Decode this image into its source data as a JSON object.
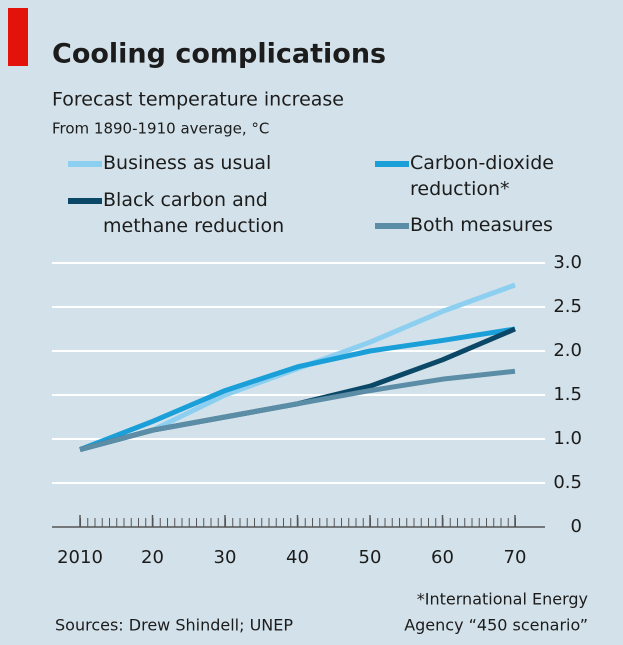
{
  "chart_data": {
    "type": "line",
    "title": "Cooling complications",
    "subtitle": "Forecast temperature increase",
    "unit_note": "From 1890-1910 average, °C",
    "x": [
      2010,
      2020,
      2030,
      2040,
      2050,
      2060,
      2070
    ],
    "series": [
      {
        "name": "Business as usual",
        "color": "#8ccff0",
        "values": [
          0.88,
          1.1,
          1.5,
          1.8,
          2.1,
          2.45,
          2.75
        ]
      },
      {
        "name": "Carbon-dioxide reduction*",
        "color": "#1a9fd9",
        "values": [
          0.88,
          1.2,
          1.55,
          1.82,
          2.0,
          2.12,
          2.25
        ]
      },
      {
        "name": "Black carbon and methane reduction",
        "color": "#0b4868",
        "values": [
          0.88,
          1.1,
          1.25,
          1.4,
          1.6,
          1.9,
          2.25
        ]
      },
      {
        "name": "Both measures",
        "color": "#5b8ea6",
        "values": [
          0.88,
          1.1,
          1.25,
          1.4,
          1.55,
          1.68,
          1.77
        ]
      }
    ],
    "xlim": [
      2010,
      2070
    ],
    "xticks": [
      2010,
      {
        "value": 2020,
        "label": "20"
      },
      {
        "value": 2030,
        "label": "30"
      },
      {
        "value": 2040,
        "label": "40"
      },
      {
        "value": 2050,
        "label": "50"
      },
      {
        "value": 2060,
        "label": "60"
      },
      {
        "value": 2070,
        "label": "70"
      }
    ],
    "ylim": [
      0,
      3
    ],
    "yticks": [
      0,
      0.5,
      {
        "value": 1,
        "label": "1.0"
      },
      1.5,
      {
        "value": 2,
        "label": "2.0"
      },
      2.5,
      {
        "value": 3,
        "label": "3.0"
      }
    ],
    "grid": true,
    "source": "Sources: Drew Shindell; UNEP",
    "footnote": [
      "*International Energy",
      "Agency “450 scenario”"
    ]
  }
}
